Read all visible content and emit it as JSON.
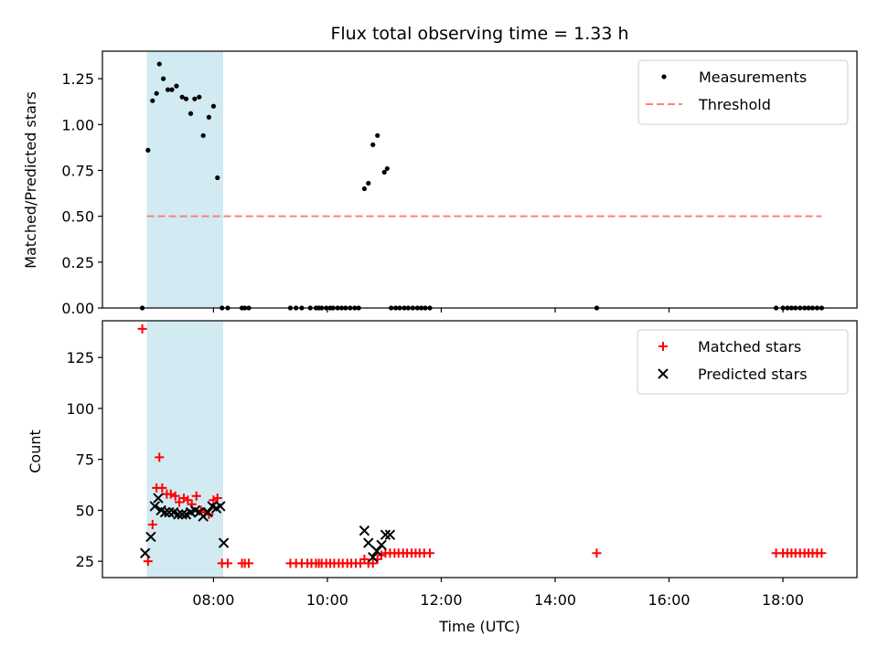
{
  "chart_data": {
    "title": "Flux total observing time = 1.33 h",
    "x_axis": {
      "label": "Time (UTC)",
      "unit": "hours UTC",
      "range": [
        6.05,
        19.3
      ],
      "ticks": [
        8,
        10,
        12,
        14,
        16,
        18
      ],
      "tick_labels": [
        "08:00",
        "10:00",
        "12:00",
        "14:00",
        "16:00",
        "18:00"
      ]
    },
    "observing_window": {
      "start": 6.83,
      "end": 8.17,
      "color": "#add8e6"
    },
    "panels": [
      {
        "type": "scatter",
        "ylabel": "Matched/Predicted stars",
        "ylim": [
          0,
          1.4
        ],
        "yticks": [
          0.0,
          0.25,
          0.5,
          0.75,
          1.0,
          1.25
        ],
        "ytick_labels": [
          "0.00",
          "0.25",
          "0.50",
          "0.75",
          "1.00",
          "1.25"
        ],
        "legend": {
          "placement": "upper right",
          "entries": [
            "Measurements",
            "Threshold"
          ]
        },
        "series": [
          {
            "name": "Measurements",
            "marker": "dot",
            "color": "#000000",
            "x": [
              6.75,
              6.85,
              6.93,
              7.0,
              7.05,
              7.12,
              7.2,
              7.27,
              7.35,
              7.45,
              7.52,
              7.6,
              7.67,
              7.75,
              7.82,
              7.92,
              8.0,
              8.07,
              8.15,
              8.25,
              8.5,
              8.55,
              8.62,
              9.35,
              9.45,
              9.55,
              9.7,
              9.8,
              9.85,
              9.9,
              9.98,
              10.05,
              10.1,
              10.18,
              10.25,
              10.32,
              10.4,
              10.48,
              10.55,
              10.65,
              10.72,
              10.8,
              10.88,
              11.0,
              11.05,
              11.12,
              11.2,
              11.27,
              11.35,
              11.42,
              11.5,
              11.58,
              11.65,
              11.72,
              11.8,
              14.73,
              17.88,
              18.0,
              18.08,
              18.15,
              18.22,
              18.3,
              18.38,
              18.45,
              18.52,
              18.6,
              18.68
            ],
            "y": [
              0,
              0.86,
              1.13,
              1.17,
              1.33,
              1.25,
              1.19,
              1.19,
              1.21,
              1.15,
              1.14,
              1.06,
              1.14,
              1.15,
              0.94,
              1.04,
              1.1,
              0.71,
              0,
              0,
              0,
              0,
              0,
              0,
              0,
              0,
              0,
              0,
              0,
              0,
              0,
              0,
              0,
              0,
              0,
              0,
              0,
              0,
              0,
              0.65,
              0.68,
              0.89,
              0.94,
              0.74,
              0.76,
              0,
              0,
              0,
              0,
              0,
              0,
              0,
              0,
              0,
              0,
              0,
              0,
              0,
              0,
              0,
              0,
              0,
              0,
              0,
              0,
              0,
              0
            ]
          },
          {
            "name": "Threshold",
            "style": "dashed",
            "color": "#ff7f7f",
            "x": [
              6.83,
              18.68
            ],
            "y": [
              0.5,
              0.5
            ]
          }
        ]
      },
      {
        "type": "scatter",
        "ylabel": "Count",
        "ylim": [
          17,
          143
        ],
        "yticks": [
          25,
          50,
          75,
          100,
          125
        ],
        "ytick_labels": [
          "25",
          "50",
          "75",
          "100",
          "125"
        ],
        "legend": {
          "placement": "upper right",
          "entries": [
            "Matched stars",
            "Predicted stars"
          ]
        },
        "series": [
          {
            "name": "Matched stars",
            "marker": "plus",
            "color": "#ff0000",
            "x": [
              6.75,
              6.85,
              6.93,
              7.0,
              7.05,
              7.1,
              7.18,
              7.25,
              7.33,
              7.4,
              7.48,
              7.55,
              7.62,
              7.7,
              7.78,
              7.85,
              7.92,
              8.0,
              8.07,
              8.15,
              8.25,
              8.5,
              8.55,
              8.62,
              9.35,
              9.45,
              9.55,
              9.65,
              9.72,
              9.8,
              9.85,
              9.9,
              9.98,
              10.05,
              10.12,
              10.2,
              10.27,
              10.35,
              10.42,
              10.5,
              10.58,
              10.65,
              10.72,
              10.8,
              10.88,
              10.95,
              11.02,
              11.1,
              11.18,
              11.25,
              11.33,
              11.4,
              11.48,
              11.55,
              11.62,
              11.7,
              11.8,
              14.73,
              17.88,
              18.0,
              18.08,
              18.15,
              18.22,
              18.3,
              18.38,
              18.45,
              18.52,
              18.6,
              18.68
            ],
            "y": [
              139,
              25,
              43,
              61,
              76,
              61,
              58,
              58,
              57,
              54,
              56,
              55,
              53,
              57,
              50,
              49,
              48,
              55,
              56,
              24,
              24,
              24,
              24,
              24,
              24,
              24,
              24,
              24,
              24,
              24,
              24,
              24,
              24,
              24,
              24,
              24,
              24,
              24,
              24,
              24,
              24,
              26,
              24,
              24,
              26,
              28,
              29,
              29,
              29,
              29,
              29,
              29,
              29,
              29,
              29,
              29,
              29,
              29,
              29,
              29,
              29,
              29,
              29,
              29,
              29,
              29,
              29,
              29,
              29
            ]
          },
          {
            "name": "Predicted stars",
            "marker": "x",
            "color": "#000000",
            "x": [
              6.8,
              6.9,
              6.97,
              7.03,
              7.08,
              7.15,
              7.22,
              7.3,
              7.38,
              7.45,
              7.52,
              7.6,
              7.68,
              7.75,
              7.82,
              7.9,
              7.98,
              8.05,
              8.12,
              8.18,
              10.65,
              10.72,
              10.8,
              10.87,
              10.95,
              11.02,
              11.1
            ],
            "y": [
              29,
              37,
              52,
              56,
              50,
              49,
              49,
              49,
              48,
              48,
              48,
              49,
              50,
              49,
              47,
              49,
              52,
              51,
              52,
              34,
              40,
              34,
              27,
              30,
              33,
              38,
              38
            ]
          }
        ]
      }
    ]
  }
}
